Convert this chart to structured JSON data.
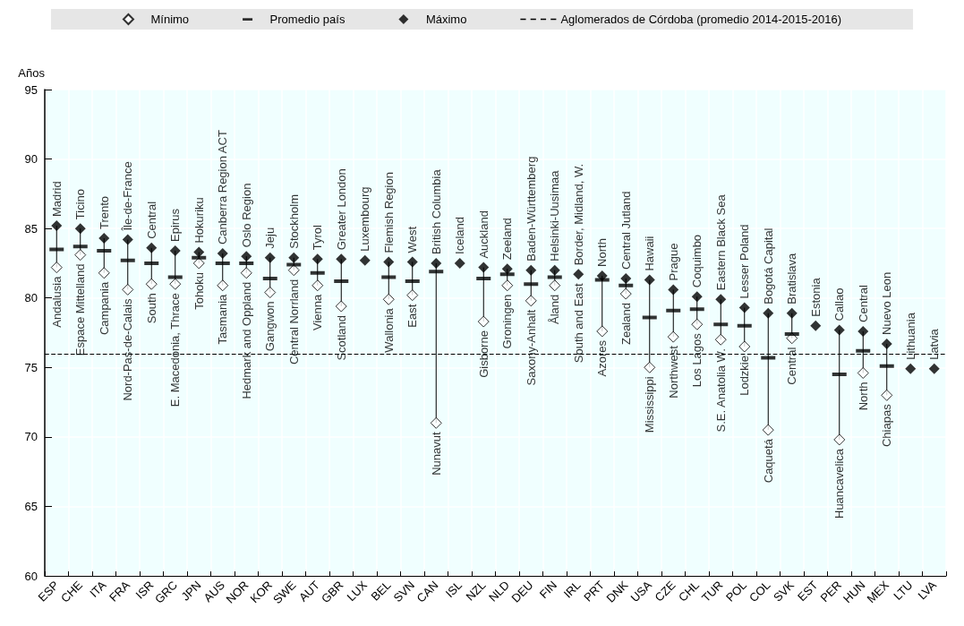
{
  "chart_data": {
    "type": "scatter",
    "ylabel": "Años",
    "categories": [
      "ESP",
      "CHE",
      "ITA",
      "FRA",
      "ISR",
      "GRC",
      "JPN",
      "AUS",
      "NOR",
      "KOR",
      "SWE",
      "AUT",
      "GBR",
      "LUX",
      "BEL",
      "SVN",
      "CAN",
      "ISL",
      "NZL",
      "NLD",
      "DEU",
      "FIN",
      "IRL",
      "PRT",
      "DNK",
      "USA",
      "CZE",
      "CHL",
      "TUR",
      "POL",
      "COL",
      "SVK",
      "EST",
      "PER",
      "HUN",
      "MEX",
      "LTU",
      "LVA"
    ],
    "series": [
      {
        "name": "Mínimo",
        "color": "#ffffff",
        "marker": "diamond",
        "values": [
          82.2,
          83.1,
          81.8,
          80.6,
          81.0,
          81.0,
          82.5,
          80.9,
          81.8,
          80.4,
          82.0,
          80.9,
          79.4,
          null,
          79.9,
          80.2,
          71.0,
          null,
          78.3,
          80.9,
          79.8,
          80.9,
          null,
          77.6,
          80.3,
          75.0,
          77.2,
          78.1,
          77.0,
          76.5,
          70.5,
          77.1,
          null,
          69.8,
          74.6,
          73.0,
          null,
          null
        ]
      },
      {
        "name": "Promedio país",
        "color": "#000000",
        "values": [
          83.5,
          83.7,
          83.4,
          82.7,
          82.5,
          81.5,
          82.9,
          82.5,
          82.5,
          81.4,
          82.4,
          81.8,
          81.2,
          null,
          81.5,
          81.2,
          81.9,
          null,
          81.4,
          81.7,
          81.0,
          81.5,
          null,
          81.3,
          80.9,
          78.6,
          79.1,
          79.2,
          78.1,
          78.0,
          75.7,
          77.4,
          null,
          74.5,
          76.2,
          75.1,
          null,
          null
        ]
      },
      {
        "name": "Máximo",
        "color": "#000000",
        "marker": "diamond",
        "values": [
          85.2,
          85.0,
          84.3,
          84.2,
          83.6,
          83.4,
          83.3,
          83.2,
          83.0,
          82.9,
          82.9,
          82.8,
          82.8,
          82.7,
          82.6,
          82.6,
          82.5,
          82.5,
          82.2,
          82.1,
          82.0,
          82.0,
          81.7,
          81.6,
          81.4,
          81.3,
          80.6,
          80.1,
          79.9,
          79.3,
          78.9,
          78.9,
          78.0,
          77.7,
          77.6,
          76.7,
          74.9,
          74.9
        ]
      }
    ],
    "ref_lines": [
      {
        "axis": "y",
        "value": 76,
        "label": "Aglomerados de Córdoba (promedio 2014-2015-2016)",
        "line_style": "dashed",
        "color": "#000000"
      }
    ],
    "ylim": [
      60,
      95
    ],
    "yticks": [
      60,
      65,
      70,
      75,
      80,
      85,
      90,
      95
    ],
    "grid": true,
    "legend": "top",
    "annotations": [
      {
        "text": "Madrid",
        "x": "ESP",
        "y": 85.2
      },
      {
        "text": "Andalusia",
        "x": "ESP",
        "y": 82.2
      },
      {
        "text": "Ticino",
        "x": "CHE",
        "y": 85.0
      },
      {
        "text": "Espace Mittelland",
        "x": "CHE",
        "y": 83.1
      },
      {
        "text": "Trento",
        "x": "ITA",
        "y": 84.3
      },
      {
        "text": "Campania",
        "x": "ITA",
        "y": 81.8
      },
      {
        "text": "Île-de-France",
        "x": "FRA",
        "y": 84.2
      },
      {
        "text": "Nord-Pas-de-Calais",
        "x": "FRA",
        "y": 80.6
      },
      {
        "text": "Central",
        "x": "ISR",
        "y": 83.6
      },
      {
        "text": "South",
        "x": "ISR",
        "y": 81.0
      },
      {
        "text": "Epirus",
        "x": "GRC",
        "y": 83.4
      },
      {
        "text": "E. Macedonia, Thrace",
        "x": "GRC",
        "y": 81.0
      },
      {
        "text": "Hokuriku",
        "x": "JPN",
        "y": 83.3
      },
      {
        "text": "Tohoku",
        "x": "JPN",
        "y": 82.5
      },
      {
        "text": "Canberra Region ACT",
        "x": "AUS",
        "y": 83.2
      },
      {
        "text": "Tasmania",
        "x": "AUS",
        "y": 80.9
      },
      {
        "text": "Oslo Region",
        "x": "NOR",
        "y": 83.0
      },
      {
        "text": "Hedmark and Oppland",
        "x": "NOR",
        "y": 81.8
      },
      {
        "text": "Jeju",
        "x": "KOR",
        "y": 82.9
      },
      {
        "text": "Gangwon",
        "x": "KOR",
        "y": 80.4
      },
      {
        "text": "Stockholm",
        "x": "SWE",
        "y": 82.9
      },
      {
        "text": "Central Norrland",
        "x": "SWE",
        "y": 82.0
      },
      {
        "text": "Tyrol",
        "x": "AUT",
        "y": 82.8
      },
      {
        "text": "Vienna",
        "x": "AUT",
        "y": 80.9
      },
      {
        "text": "Greater London",
        "x": "GBR",
        "y": 82.8
      },
      {
        "text": "Scotland",
        "x": "GBR",
        "y": 79.4
      },
      {
        "text": "Luxembourg",
        "x": "LUX",
        "y": 82.7
      },
      {
        "text": "Flemish Region",
        "x": "BEL",
        "y": 82.6
      },
      {
        "text": "Wallonia",
        "x": "BEL",
        "y": 79.9
      },
      {
        "text": "West",
        "x": "SVN",
        "y": 82.6
      },
      {
        "text": "East",
        "x": "SVN",
        "y": 80.2
      },
      {
        "text": "British Columbia",
        "x": "CAN",
        "y": 82.5
      },
      {
        "text": "Nunavut",
        "x": "CAN",
        "y": 71.0
      },
      {
        "text": "Iceland",
        "x": "ISL",
        "y": 82.5
      },
      {
        "text": "Auckland",
        "x": "NZL",
        "y": 82.2
      },
      {
        "text": "Gisborne",
        "x": "NZL",
        "y": 78.3
      },
      {
        "text": "Zeeland",
        "x": "NLD",
        "y": 82.1
      },
      {
        "text": "Groningen",
        "x": "NLD",
        "y": 80.9
      },
      {
        "text": "Baden-Württemberg",
        "x": "DEU",
        "y": 82.0
      },
      {
        "text": "Saxony-Anhalt",
        "x": "DEU",
        "y": 79.8
      },
      {
        "text": "Helsinki-Uusimaa",
        "x": "FIN",
        "y": 82.0
      },
      {
        "text": "Åland",
        "x": "FIN",
        "y": 80.9
      },
      {
        "text": "Border, Midland, W.",
        "x": "IRL",
        "y": 81.7
      },
      {
        "text": "South and East",
        "x": "IRL",
        "y": 81.7
      },
      {
        "text": "North",
        "x": "PRT",
        "y": 81.6
      },
      {
        "text": "Azores",
        "x": "PRT",
        "y": 77.6
      },
      {
        "text": "Central Jutland",
        "x": "DNK",
        "y": 81.4
      },
      {
        "text": "Zealand",
        "x": "DNK",
        "y": 80.3
      },
      {
        "text": "Hawaii",
        "x": "USA",
        "y": 81.3
      },
      {
        "text": "Mississippi",
        "x": "USA",
        "y": 75.0
      },
      {
        "text": "Prague",
        "x": "CZE",
        "y": 80.6
      },
      {
        "text": "Northwest",
        "x": "CZE",
        "y": 77.2
      },
      {
        "text": "Coquimbo",
        "x": "CHL",
        "y": 80.1
      },
      {
        "text": "Los Lagos",
        "x": "CHL",
        "y": 78.1
      },
      {
        "text": "Eastern Black Sea",
        "x": "TUR",
        "y": 79.9
      },
      {
        "text": "S.E. Anatolia W.",
        "x": "TUR",
        "y": 77.0
      },
      {
        "text": "Lesser Poland",
        "x": "POL",
        "y": 79.3
      },
      {
        "text": "Lodzkie",
        "x": "POL",
        "y": 76.5
      },
      {
        "text": "Bogotá Capital",
        "x": "COL",
        "y": 78.9
      },
      {
        "text": "Caquetá",
        "x": "COL",
        "y": 70.5
      },
      {
        "text": "Bratislava",
        "x": "SVK",
        "y": 78.9
      },
      {
        "text": "Central",
        "x": "SVK",
        "y": 77.1
      },
      {
        "text": "Estonia",
        "x": "EST",
        "y": 78.0
      },
      {
        "text": "Callao",
        "x": "PER",
        "y": 77.7
      },
      {
        "text": "Huancavelica",
        "x": "PER",
        "y": 69.8
      },
      {
        "text": "Central",
        "x": "HUN",
        "y": 77.6
      },
      {
        "text": "North",
        "x": "HUN",
        "y": 74.6
      },
      {
        "text": "Nuevo Leon",
        "x": "MEX",
        "y": 76.7
      },
      {
        "text": "Chiapas",
        "x": "MEX",
        "y": 73.0
      },
      {
        "text": "Lithuania",
        "x": "LTU",
        "y": 74.9
      },
      {
        "text": "Latvia",
        "x": "LVA",
        "y": 74.9
      }
    ]
  }
}
